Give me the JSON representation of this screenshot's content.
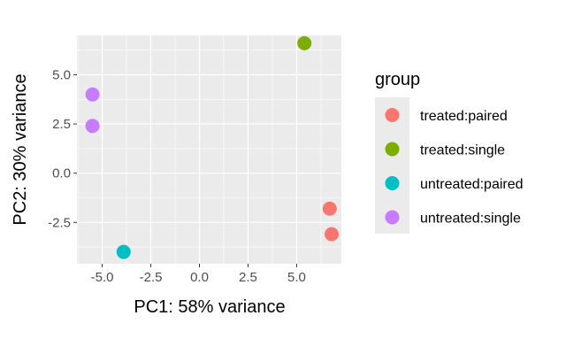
{
  "chart_data": {
    "type": "scatter",
    "xlabel": "PC1: 58% variance",
    "ylabel": "PC2: 30% variance",
    "xlim": [
      -6.3,
      7.3
    ],
    "ylim": [
      -4.6,
      7.0
    ],
    "x_ticks": [
      -5.0,
      -2.5,
      0.0,
      2.5,
      5.0
    ],
    "x_tick_labels": [
      "-5.0",
      "-2.5",
      "0.0",
      "2.5",
      "5.0"
    ],
    "y_ticks": [
      -2.5,
      0.0,
      2.5,
      5.0
    ],
    "y_tick_labels": [
      "-2.5",
      "0.0",
      "2.5",
      "5.0"
    ],
    "grid": true,
    "legend_title": "group",
    "legend_position": "right",
    "series": [
      {
        "name": "treated:paired",
        "color": "#F8766D",
        "points": [
          [
            6.7,
            -1.8
          ],
          [
            6.8,
            -3.1
          ]
        ]
      },
      {
        "name": "treated:single",
        "color": "#7CAE00",
        "points": [
          [
            5.4,
            6.6
          ]
        ]
      },
      {
        "name": "untreated:paired",
        "color": "#00BFC4",
        "points": [
          [
            -3.9,
            -4.0
          ]
        ]
      },
      {
        "name": "untreated:single",
        "color": "#C77CFF",
        "points": [
          [
            -5.5,
            4.0
          ],
          [
            -5.5,
            2.4
          ]
        ]
      }
    ]
  }
}
